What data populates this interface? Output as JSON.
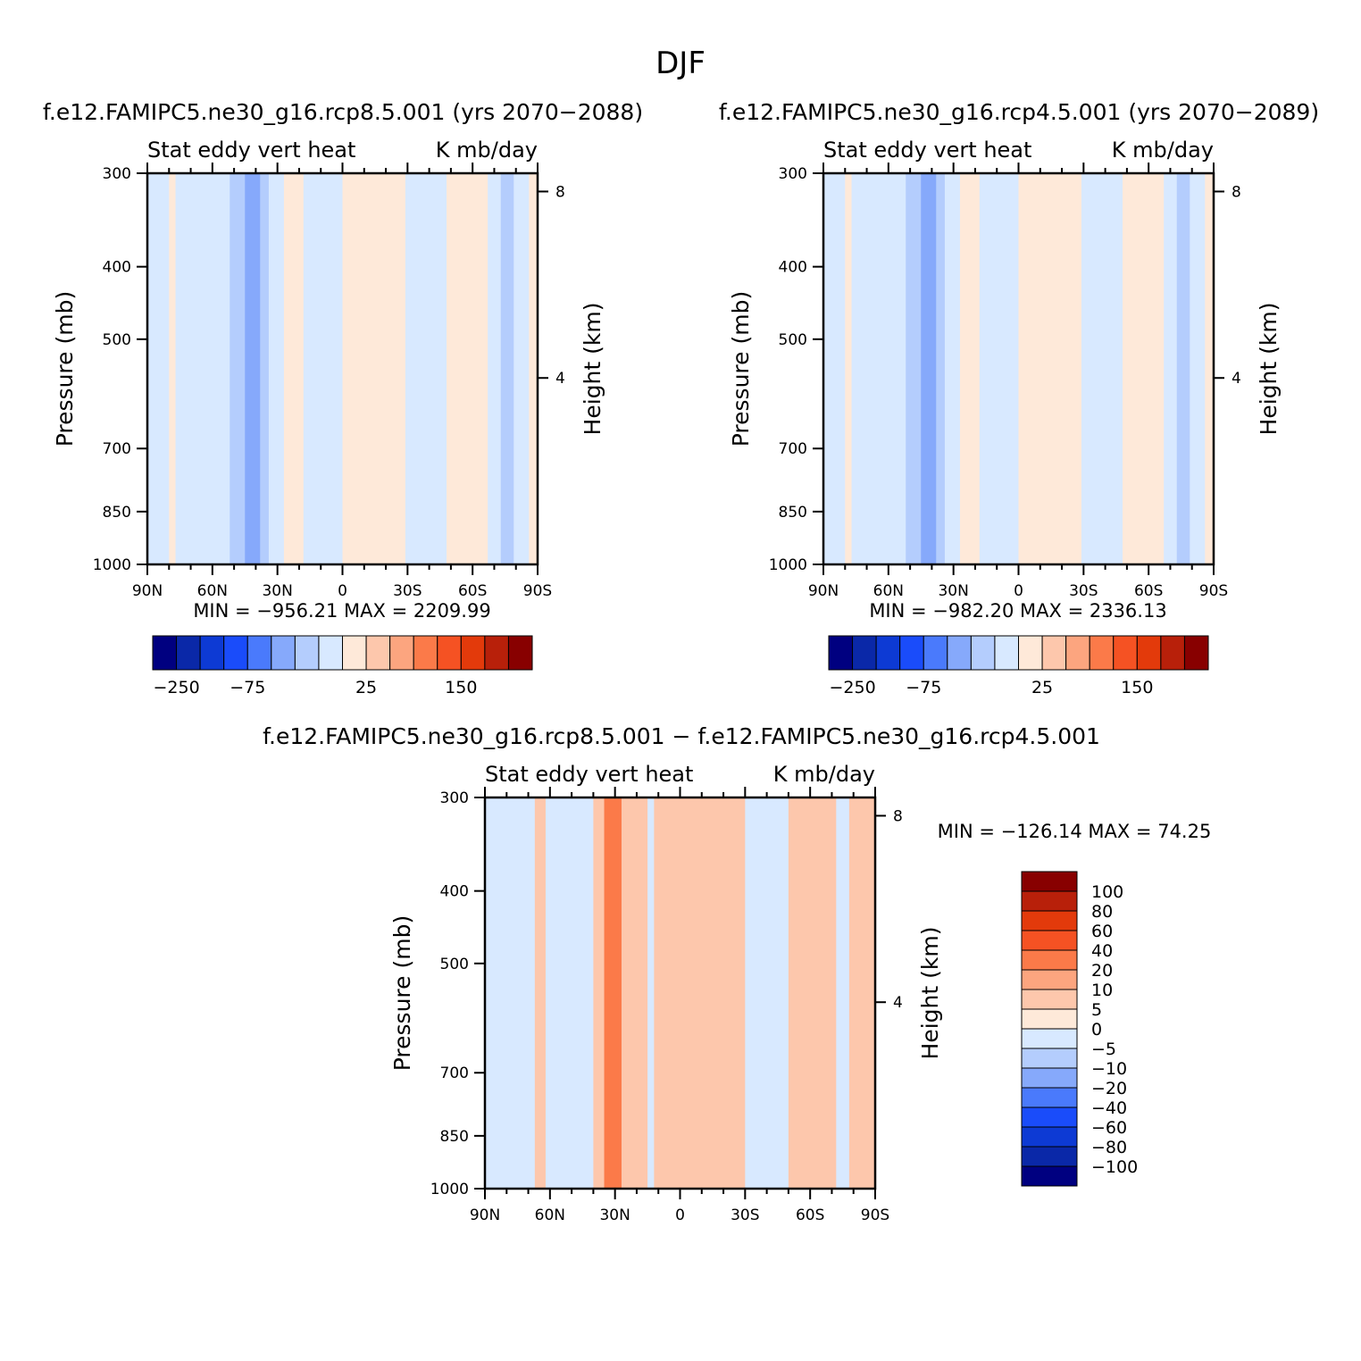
{
  "figure": {
    "title": "DJF",
    "diff_title": "f.e12.FAMIPC5.ne30_g16.rcp8.5.001 − f.e12.FAMIPC5.ne30_g16.rcp4.5.001"
  },
  "chart_data": [
    {
      "type": "heatmap",
      "title": "f.e12.FAMIPC5.ne30_g16.rcp8.5.001 (yrs 2070−2088)",
      "left_header": "Stat eddy vert heat",
      "right_header": "K mb/day",
      "ylabel": "Pressure (mb)",
      "y2label": "Height (km)",
      "x_ticks": [
        "90N",
        "60N",
        "30N",
        "0",
        "30S",
        "60S",
        "90S"
      ],
      "xlim": [
        90,
        -90
      ],
      "y_ticks": [
        "300",
        "400",
        "500",
        "700",
        "850",
        "1000"
      ],
      "ylim": [
        1000,
        300
      ],
      "y_scale": "log",
      "y2_ticks": [
        "8",
        "4"
      ],
      "min_text": "MIN = −956.21",
      "max_text": "MAX = 2209.99",
      "colorbar": {
        "orientation": "horizontal",
        "labels": [
          "−250",
          "−75",
          "25",
          "150"
        ],
        "colors": [
          "#000080",
          "#0a28a8",
          "#0d3ad4",
          "#1a4cfa",
          "#4a7afc",
          "#86a9fb",
          "#b4cdfd",
          "#d8e9ff",
          "#fee9d9",
          "#fdc7ac",
          "#fca57f",
          "#fb7a49",
          "#f55223",
          "#e33a0b",
          "#b8200a",
          "#880000"
        ]
      },
      "bands": [
        {
          "from": 90,
          "to": 80,
          "value": -5
        },
        {
          "from": 80,
          "to": 77,
          "value": 5
        },
        {
          "from": 77,
          "to": 66,
          "value": -5
        },
        {
          "from": 66,
          "to": 58,
          "value": -10
        },
        {
          "from": 58,
          "to": 52,
          "value": -20
        },
        {
          "from": 52,
          "to": 45,
          "value": -40
        },
        {
          "from": 45,
          "to": 38,
          "value": -60
        },
        {
          "from": 38,
          "to": 34,
          "value": -40
        },
        {
          "from": 34,
          "to": 27,
          "value": -10
        },
        {
          "from": 27,
          "to": 18,
          "value": 5
        },
        {
          "from": 18,
          "to": 0,
          "value": -5
        },
        {
          "from": 0,
          "to": -20,
          "value": 5
        },
        {
          "from": -20,
          "to": -29,
          "value": 10
        },
        {
          "from": -29,
          "to": -48,
          "value": -5
        },
        {
          "from": -48,
          "to": -67,
          "value": 5
        },
        {
          "from": -67,
          "to": -73,
          "value": -10
        },
        {
          "from": -73,
          "to": -79,
          "value": -40
        },
        {
          "from": -79,
          "to": -86,
          "value": -10
        },
        {
          "from": -86,
          "to": -90,
          "value": 5
        }
      ]
    },
    {
      "type": "heatmap",
      "title": "f.e12.FAMIPC5.ne30_g16.rcp4.5.001 (yrs 2070−2089)",
      "left_header": "Stat eddy vert heat",
      "right_header": "K mb/day",
      "ylabel": "Pressure (mb)",
      "y2label": "Height (km)",
      "x_ticks": [
        "90N",
        "60N",
        "30N",
        "0",
        "30S",
        "60S",
        "90S"
      ],
      "xlim": [
        90,
        -90
      ],
      "y_ticks": [
        "300",
        "400",
        "500",
        "700",
        "850",
        "1000"
      ],
      "ylim": [
        1000,
        300
      ],
      "y_scale": "log",
      "y2_ticks": [
        "8",
        "4"
      ],
      "min_text": "MIN = −982.20",
      "max_text": "MAX = 2336.13",
      "colorbar": {
        "orientation": "horizontal",
        "labels": [
          "−250",
          "−75",
          "25",
          "150"
        ],
        "colors": [
          "#000080",
          "#0a28a8",
          "#0d3ad4",
          "#1a4cfa",
          "#4a7afc",
          "#86a9fb",
          "#b4cdfd",
          "#d8e9ff",
          "#fee9d9",
          "#fdc7ac",
          "#fca57f",
          "#fb7a49",
          "#f55223",
          "#e33a0b",
          "#b8200a",
          "#880000"
        ]
      },
      "bands": [
        {
          "from": 90,
          "to": 80,
          "value": -5
        },
        {
          "from": 80,
          "to": 77,
          "value": 5
        },
        {
          "from": 77,
          "to": 66,
          "value": -5
        },
        {
          "from": 66,
          "to": 58,
          "value": -10
        },
        {
          "from": 58,
          "to": 52,
          "value": -20
        },
        {
          "from": 52,
          "to": 45,
          "value": -40
        },
        {
          "from": 45,
          "to": 38,
          "value": -60
        },
        {
          "from": 38,
          "to": 34,
          "value": -40
        },
        {
          "from": 34,
          "to": 27,
          "value": -10
        },
        {
          "from": 27,
          "to": 18,
          "value": 5
        },
        {
          "from": 18,
          "to": 0,
          "value": -5
        },
        {
          "from": 0,
          "to": -20,
          "value": 5
        },
        {
          "from": -20,
          "to": -29,
          "value": 10
        },
        {
          "from": -29,
          "to": -48,
          "value": -5
        },
        {
          "from": -48,
          "to": -67,
          "value": 5
        },
        {
          "from": -67,
          "to": -73,
          "value": -10
        },
        {
          "from": -73,
          "to": -79,
          "value": -40
        },
        {
          "from": -79,
          "to": -86,
          "value": -10
        },
        {
          "from": -86,
          "to": -90,
          "value": 5
        }
      ]
    },
    {
      "type": "heatmap",
      "left_header": "Stat eddy vert heat",
      "right_header": "K mb/day",
      "ylabel": "Pressure (mb)",
      "y2label": "Height (km)",
      "x_ticks": [
        "90N",
        "60N",
        "30N",
        "0",
        "30S",
        "60S",
        "90S"
      ],
      "xlim": [
        90,
        -90
      ],
      "y_ticks": [
        "300",
        "400",
        "500",
        "700",
        "850",
        "1000"
      ],
      "ylim": [
        1000,
        300
      ],
      "y_scale": "log",
      "y2_ticks": [
        "8",
        "4"
      ],
      "min_text": "MIN = −126.14",
      "max_text": "MAX =   74.25",
      "colorbar": {
        "orientation": "vertical",
        "labels": [
          "100",
          "80",
          "60",
          "40",
          "20",
          "10",
          "5",
          "0",
          "−5",
          "−10",
          "−20",
          "−40",
          "−60",
          "−80",
          "−100"
        ],
        "colors": [
          "#880000",
          "#b8200a",
          "#e33a0b",
          "#f55223",
          "#fb7a49",
          "#fca57f",
          "#fdc7ac",
          "#fee9d9",
          "#d8e9ff",
          "#b4cdfd",
          "#86a9fb",
          "#4a7afc",
          "#1a4cfa",
          "#0d3ad4",
          "#0a28a8",
          "#000080"
        ]
      },
      "bands": [
        {
          "from": 90,
          "to": 67,
          "value": -5
        },
        {
          "from": 67,
          "to": 62,
          "value": 5
        },
        {
          "from": 62,
          "to": 40,
          "value": -5
        },
        {
          "from": 40,
          "to": 35,
          "value": 5
        },
        {
          "from": 35,
          "to": 27,
          "value": 20
        },
        {
          "from": 27,
          "to": 15,
          "value": 5
        },
        {
          "from": 15,
          "to": 12,
          "value": -5
        },
        {
          "from": 12,
          "to": -30,
          "value": 5
        },
        {
          "from": -30,
          "to": -50,
          "value": -5
        },
        {
          "from": -50,
          "to": -72,
          "value": 5
        },
        {
          "from": -72,
          "to": -78,
          "value": -5
        },
        {
          "from": -78,
          "to": -90,
          "value": 5
        }
      ]
    }
  ]
}
